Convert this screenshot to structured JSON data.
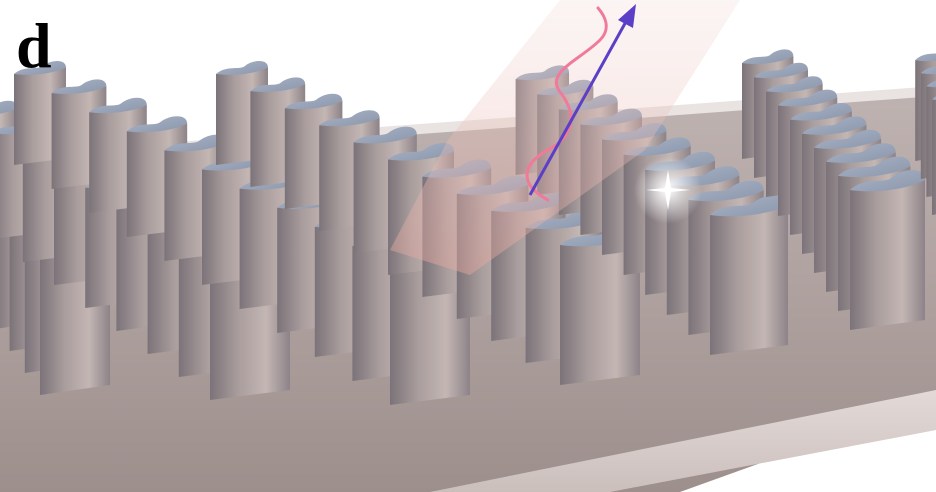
{
  "panel_label": "d",
  "colors": {
    "background": "#ffffff",
    "substrate_top": "#a89893",
    "substrate_edge": "#d9cfcc",
    "pillar_top": "#9aa5b8",
    "pillar_side_light": "#b5a7a4",
    "pillar_side_dark": "#6f6870",
    "beam": "#d9a5a0",
    "wave": "#f07a9a",
    "arrow": "#5b3fc6"
  },
  "icons": {
    "arrow": "outgoing-beam-arrow-icon",
    "wave": "polarization-wave-icon",
    "sparkle": "light-sparkle-icon"
  }
}
